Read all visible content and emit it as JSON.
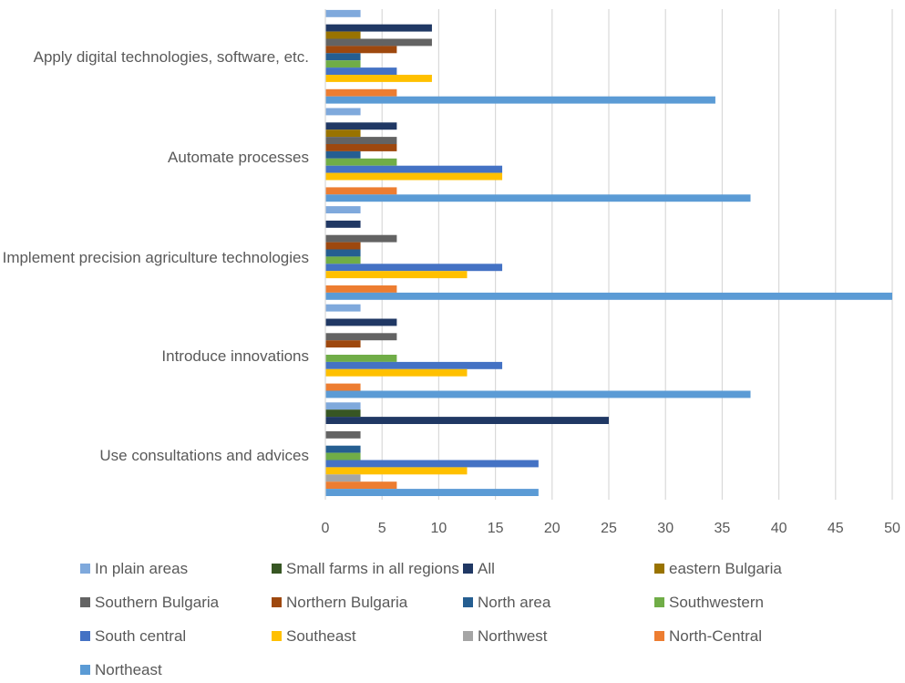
{
  "chart_data": {
    "type": "bar",
    "orientation": "horizontal",
    "title": "",
    "xlabel": "",
    "ylabel": "",
    "xlim": [
      0,
      50
    ],
    "x_ticks": [
      "0",
      "5",
      "10",
      "15",
      "20",
      "25",
      "30",
      "35",
      "40",
      "45",
      "50"
    ],
    "grid": "vertical",
    "legend_position": "bottom",
    "categories": [
      "Apply digital technologies, software, etc.",
      "Automate processes",
      "Implement precision agriculture technologies",
      "Introduce innovations",
      "Use consultations and advices"
    ],
    "series": [
      {
        "name": "In plain areas",
        "color": "#7fa9dc",
        "values": [
          3.1,
          3.1,
          3.1,
          3.1,
          3.1
        ]
      },
      {
        "name": "Small farms in all regions",
        "color": "#375623",
        "values": [
          0,
          0,
          0,
          0,
          3.1
        ]
      },
      {
        "name": "All",
        "color": "#203864",
        "values": [
          9.4,
          6.3,
          3.1,
          6.3,
          25
        ]
      },
      {
        "name": "eastern Bulgaria",
        "color": "#997300",
        "values": [
          3.1,
          3.1,
          0,
          0,
          0
        ]
      },
      {
        "name": "Southern Bulgaria",
        "color": "#636363",
        "values": [
          9.4,
          6.3,
          6.3,
          6.3,
          3.1
        ]
      },
      {
        "name": "Northern Bulgaria",
        "color": "#9e480e",
        "values": [
          6.3,
          6.3,
          3.1,
          3.1,
          0
        ]
      },
      {
        "name": "North area",
        "color": "#255e91",
        "values": [
          3.1,
          3.1,
          3.1,
          0,
          3.1
        ]
      },
      {
        "name": "Southwestern",
        "color": "#70ad47",
        "values": [
          3.1,
          6.3,
          3.1,
          6.3,
          3.1
        ]
      },
      {
        "name": "South central",
        "color": "#4472c4",
        "values": [
          6.3,
          15.6,
          15.6,
          15.6,
          18.8
        ]
      },
      {
        "name": "Southeast",
        "color": "#ffc000",
        "values": [
          9.4,
          15.6,
          12.5,
          12.5,
          12.5
        ]
      },
      {
        "name": "Northwest",
        "color": "#a5a5a5",
        "values": [
          0,
          0,
          0,
          0,
          3.1
        ]
      },
      {
        "name": "North-Central",
        "color": "#ed7d31",
        "values": [
          6.3,
          6.3,
          6.3,
          3.1,
          6.3
        ]
      },
      {
        "name": "Northeast",
        "color": "#5b9bd5",
        "values": [
          34.4,
          37.5,
          50,
          37.5,
          18.8
        ]
      }
    ]
  }
}
